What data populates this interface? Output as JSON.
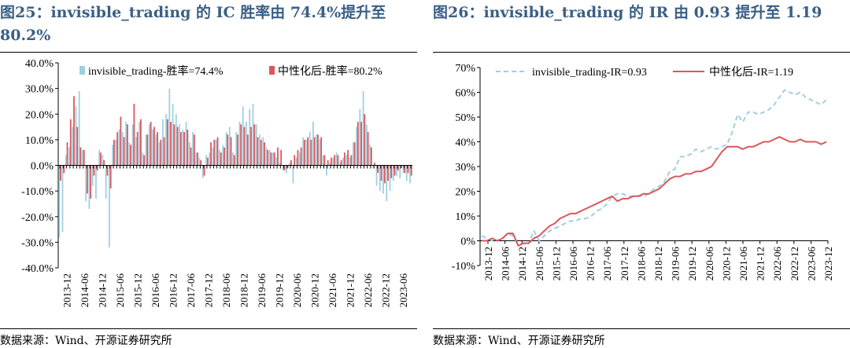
{
  "left": {
    "title": "图25：invisible_trading 的 IC 胜率由 74.4%提升至 80.2%",
    "source": "数据来源：Wind、开源证券研究所"
  },
  "right": {
    "title": "图26：invisible_trading 的 IR 由 0.93 提升至 1.19",
    "source": "数据来源：Wind、开源证券研究所"
  },
  "colors": {
    "title": "#3a5f86",
    "series_a": "#9fcfe0",
    "series_b": "#d9575b",
    "zero_tick": "#000000"
  },
  "chart_data": [
    {
      "type": "bar",
      "ylim": [
        -40,
        40
      ],
      "yticks": [
        "-40.0%",
        "-30.0%",
        "-20.0%",
        "-10.0%",
        "0.0%",
        "10.0%",
        "20.0%",
        "30.0%",
        "40.0%"
      ],
      "yticks_values": [
        -40,
        -30,
        -20,
        -10,
        0,
        10,
        20,
        30,
        40
      ],
      "xtick_labels": [
        "2013-12",
        "2014-06",
        "2014-12",
        "2015-06",
        "2015-12",
        "2016-06",
        "2016-12",
        "2017-06",
        "2017-12",
        "2018-06",
        "2018-12",
        "2019-06",
        "2019-12",
        "2020-06",
        "2020-12",
        "2021-06",
        "2021-12",
        "2022-06",
        "2022-12",
        "2023-06"
      ],
      "legend": {
        "placement": "top",
        "entries": [
          "invisible_trading-胜率=74.4%",
          "中性化后-胜率=80.2%"
        ]
      },
      "series": [
        {
          "name": "invisible_trading-胜率=74.4%",
          "values": [
            -28,
            -26,
            4,
            7,
            15,
            23,
            29,
            6,
            -14,
            -17,
            -8,
            -13,
            6,
            4,
            -13,
            -32,
            8,
            10,
            14,
            13,
            17,
            9,
            16,
            11,
            17,
            5,
            12,
            16,
            14,
            12,
            9,
            18,
            20,
            30,
            24,
            20,
            16,
            14,
            17,
            9,
            13,
            5,
            3,
            -5,
            4,
            5,
            7,
            10,
            6,
            8,
            13,
            15,
            5,
            13,
            17,
            23,
            17,
            22,
            24,
            16,
            12,
            11,
            7,
            6,
            5,
            3,
            1,
            -2,
            -3,
            1,
            -7,
            3,
            5,
            11,
            10,
            13,
            17,
            12,
            10,
            4,
            -4,
            1,
            3,
            5,
            1,
            3,
            4,
            3,
            9,
            15,
            22,
            29,
            16,
            8,
            -1,
            -8,
            -10,
            -11,
            -14,
            -10,
            -6,
            -4,
            -5,
            -3,
            -6,
            -7
          ]
        },
        {
          "name": "中性化后-胜率=80.2%",
          "values": [
            -6,
            -3,
            9,
            18,
            27,
            15,
            7,
            6,
            -11,
            -13,
            -4,
            -2,
            5,
            2,
            -4,
            -9,
            10,
            13,
            19,
            11,
            16,
            8,
            24,
            13,
            18,
            4,
            12,
            17,
            15,
            13,
            10,
            11,
            18,
            17,
            16,
            15,
            13,
            13,
            14,
            7,
            12,
            5,
            2,
            -4,
            3,
            9,
            10,
            11,
            5,
            7,
            12,
            11,
            4,
            12,
            16,
            15,
            12,
            15,
            16,
            11,
            10,
            9,
            6,
            5,
            5,
            7,
            6,
            -2,
            -1,
            2,
            4,
            6,
            7,
            10,
            11,
            10,
            11,
            12,
            11,
            4,
            2,
            3,
            4,
            4,
            2,
            5,
            6,
            4,
            9,
            17,
            17,
            20,
            13,
            7,
            1,
            -3,
            -6,
            -7,
            -6,
            -5,
            -4,
            -2,
            -1,
            -3,
            -3,
            -4
          ]
        }
      ]
    },
    {
      "type": "line",
      "ylim": [
        -10,
        70
      ],
      "yticks": [
        "-10%",
        "0%",
        "10%",
        "20%",
        "30%",
        "40%",
        "50%",
        "60%",
        "70%"
      ],
      "yticks_values": [
        -10,
        0,
        10,
        20,
        30,
        40,
        50,
        60,
        70
      ],
      "xtick_labels": [
        "2013-12",
        "2014-06",
        "2014-12",
        "2015-06",
        "2015-12",
        "2016-06",
        "2016-12",
        "2017-06",
        "2017-12",
        "2018-06",
        "2018-12",
        "2019-06",
        "2019-12",
        "2020-06",
        "2020-12",
        "2021-06",
        "2021-12",
        "2022-06",
        "2022-12",
        "2023-06",
        "2023-12"
      ],
      "legend": {
        "placement": "top",
        "entries": [
          "invisible_trading-IR=0.93",
          "中性化后-IR=1.19"
        ]
      },
      "series": [
        {
          "name": "invisible_trading-IR=0.93",
          "style": "dashed",
          "values": [
            2,
            1,
            0,
            0,
            1,
            3,
            2,
            -2,
            -1,
            -1,
            4,
            0,
            2,
            4,
            5,
            6,
            7,
            8,
            8,
            9,
            9,
            10,
            12,
            13,
            15,
            18,
            19,
            19,
            18,
            18,
            18,
            18,
            19,
            21,
            22,
            24,
            28,
            29,
            34,
            34,
            35,
            37,
            36,
            37,
            38,
            37,
            38,
            39,
            44,
            51,
            48,
            52,
            52,
            51,
            52,
            53,
            55,
            58,
            61,
            60,
            59,
            60,
            58,
            57,
            56,
            55,
            57
          ]
        },
        {
          "name": "中性化后-IR=1.19",
          "style": "solid",
          "values": [
            0,
            0,
            1,
            0,
            1,
            3,
            3,
            -2,
            -1,
            -1,
            1,
            2,
            4,
            6,
            7,
            9,
            10,
            11,
            11,
            12,
            13,
            14,
            15,
            16,
            17,
            18,
            16,
            17,
            17,
            18,
            18,
            19,
            19,
            20,
            21,
            23,
            25,
            26,
            26,
            27,
            27,
            28,
            28,
            29,
            30,
            33,
            36,
            38,
            38,
            38,
            37,
            38,
            38,
            39,
            40,
            40,
            41,
            42,
            41,
            40,
            40,
            41,
            40,
            40,
            40,
            39,
            40
          ]
        }
      ]
    }
  ]
}
